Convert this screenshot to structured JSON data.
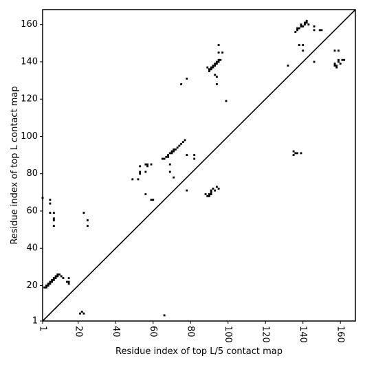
{
  "chart_data": {
    "type": "scatter",
    "title": "",
    "xlabel": "Residue index of top L/5 contact map",
    "ylabel": "Residue index of top L contact map",
    "xlim": [
      1,
      168
    ],
    "ylim": [
      1,
      168
    ],
    "xticks": [
      1,
      20,
      40,
      60,
      80,
      100,
      120,
      140,
      160
    ],
    "yticks": [
      1,
      20,
      40,
      60,
      80,
      100,
      120,
      140,
      160
    ],
    "x_tick_rotation": -90,
    "grid": false,
    "legend": "none",
    "diagonal": true,
    "colors": {
      "points": "#000000",
      "diagonal": "#000000",
      "background": "#ffffff"
    },
    "series": [
      {
        "points": [
          [
            1,
            67
          ],
          [
            5,
            66
          ],
          [
            5,
            64
          ],
          [
            5,
            59
          ],
          [
            7,
            59
          ],
          [
            7,
            56
          ],
          [
            7,
            55
          ],
          [
            7,
            52
          ],
          [
            2,
            19
          ],
          [
            3,
            20
          ],
          [
            3,
            19
          ],
          [
            4,
            21
          ],
          [
            4,
            20
          ],
          [
            5,
            22
          ],
          [
            5,
            21
          ],
          [
            6,
            23
          ],
          [
            6,
            22
          ],
          [
            7,
            24
          ],
          [
            7,
            23
          ],
          [
            8,
            25
          ],
          [
            8,
            24
          ],
          [
            9,
            26
          ],
          [
            9,
            25
          ],
          [
            10,
            26
          ],
          [
            11,
            25
          ],
          [
            12,
            24
          ],
          [
            14,
            22
          ],
          [
            15,
            21
          ],
          [
            15,
            22
          ],
          [
            15,
            24
          ],
          [
            21,
            5
          ],
          [
            22,
            6
          ],
          [
            23,
            5
          ],
          [
            23,
            59
          ],
          [
            25,
            55
          ],
          [
            25,
            52
          ],
          [
            49,
            77
          ],
          [
            52,
            77
          ],
          [
            53,
            84
          ],
          [
            53,
            81
          ],
          [
            53,
            80
          ],
          [
            56,
            85
          ],
          [
            56,
            81
          ],
          [
            57,
            85
          ],
          [
            57,
            84
          ],
          [
            56,
            69
          ],
          [
            59,
            85
          ],
          [
            59,
            66
          ],
          [
            60,
            66
          ],
          [
            65,
            88
          ],
          [
            66,
            88
          ],
          [
            67,
            89
          ],
          [
            68,
            90
          ],
          [
            68,
            89
          ],
          [
            69,
            91
          ],
          [
            70,
            92
          ],
          [
            70,
            91
          ],
          [
            71,
            93
          ],
          [
            71,
            92
          ],
          [
            72,
            93
          ],
          [
            73,
            94
          ],
          [
            74,
            95
          ],
          [
            75,
            96
          ],
          [
            76,
            97
          ],
          [
            77,
            98
          ],
          [
            66,
            4
          ],
          [
            69,
            85
          ],
          [
            69,
            81
          ],
          [
            71,
            78
          ],
          [
            78,
            90
          ],
          [
            82,
            90
          ],
          [
            82,
            88
          ],
          [
            78,
            71
          ],
          [
            78,
            131
          ],
          [
            75,
            128
          ],
          [
            99,
            119
          ],
          [
            88,
            69
          ],
          [
            89,
            68
          ],
          [
            90,
            68
          ],
          [
            91,
            69
          ],
          [
            91,
            70
          ],
          [
            91,
            71
          ],
          [
            92,
            72
          ],
          [
            93,
            71
          ],
          [
            94,
            73
          ],
          [
            95,
            72
          ],
          [
            90,
            69
          ],
          [
            89,
            137
          ],
          [
            90,
            136
          ],
          [
            90,
            135
          ],
          [
            91,
            137
          ],
          [
            91,
            136
          ],
          [
            92,
            138
          ],
          [
            92,
            137
          ],
          [
            93,
            139
          ],
          [
            93,
            138
          ],
          [
            94,
            140
          ],
          [
            94,
            139
          ],
          [
            95,
            141
          ],
          [
            95,
            140
          ],
          [
            96,
            141
          ],
          [
            93,
            133
          ],
          [
            94,
            132
          ],
          [
            94,
            128
          ],
          [
            95,
            145
          ],
          [
            95,
            149
          ],
          [
            97,
            145
          ],
          [
            132,
            138
          ],
          [
            135,
            92
          ],
          [
            135,
            90
          ],
          [
            136,
            91
          ],
          [
            137,
            91
          ],
          [
            139,
            91
          ],
          [
            136,
            156
          ],
          [
            137,
            157
          ],
          [
            137,
            158
          ],
          [
            138,
            158
          ],
          [
            139,
            159
          ],
          [
            139,
            160
          ],
          [
            140,
            159
          ],
          [
            141,
            160
          ],
          [
            141,
            161
          ],
          [
            142,
            162
          ],
          [
            142,
            161
          ],
          [
            143,
            160
          ],
          [
            138,
            149
          ],
          [
            140,
            149
          ],
          [
            140,
            146
          ],
          [
            146,
            159
          ],
          [
            146,
            157
          ],
          [
            149,
            157
          ],
          [
            150,
            157
          ],
          [
            146,
            140
          ],
          [
            157,
            146
          ],
          [
            157,
            139
          ],
          [
            157,
            138
          ],
          [
            158,
            138
          ],
          [
            158,
            137
          ],
          [
            159,
            146
          ],
          [
            159,
            141
          ],
          [
            159,
            140
          ],
          [
            160,
            139
          ],
          [
            161,
            141
          ],
          [
            162,
            141
          ]
        ]
      }
    ]
  }
}
